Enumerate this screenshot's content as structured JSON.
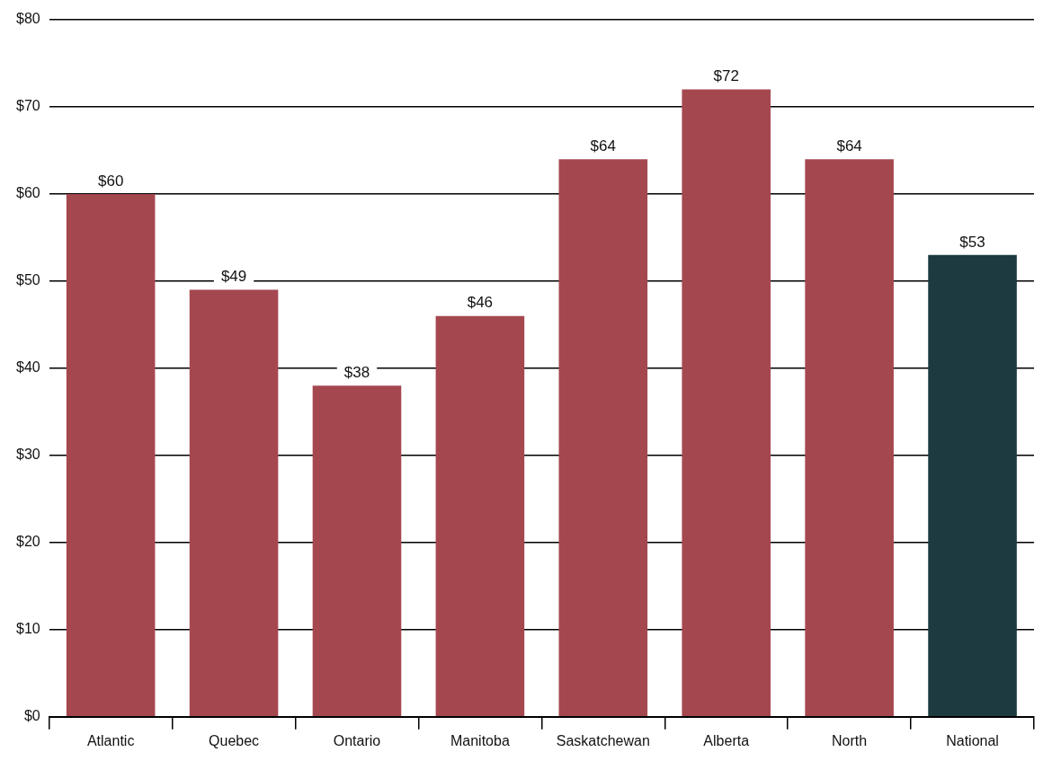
{
  "chart_data": {
    "type": "bar",
    "categories": [
      "Atlantic",
      "Quebec",
      "Ontario",
      "Manitoba",
      "Saskatchewan",
      "Alberta",
      "North",
      "National"
    ],
    "values": [
      60,
      49,
      38,
      46,
      64,
      72,
      64,
      53
    ],
    "value_labels": [
      "$60",
      "$49",
      "$38",
      "$46",
      "$64",
      "$72",
      "$64",
      "$53"
    ],
    "colors": [
      "#a5474f",
      "#a5474f",
      "#a5474f",
      "#a5474f",
      "#a5474f",
      "#a5474f",
      "#a5474f",
      "#1c3a40"
    ],
    "ylim": [
      0,
      80
    ],
    "yticks": [
      {
        "value": 0,
        "label": "$0"
      },
      {
        "value": 10,
        "label": "$10"
      },
      {
        "value": 20,
        "label": "$20"
      },
      {
        "value": 30,
        "label": "$30"
      },
      {
        "value": 40,
        "label": "$40"
      },
      {
        "value": 50,
        "label": "$50"
      },
      {
        "value": 60,
        "label": "$60"
      },
      {
        "value": 70,
        "label": "$70"
      },
      {
        "value": 80,
        "label": "$80"
      }
    ],
    "grid": true,
    "data_labels": true
  }
}
